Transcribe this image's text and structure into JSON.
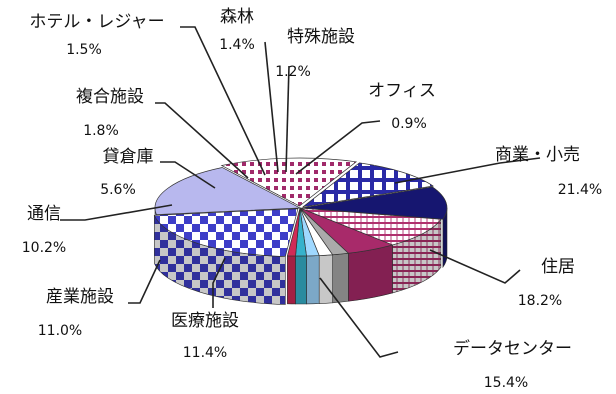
{
  "chart_data": {
    "type": "pie",
    "title": "",
    "style": "3d-exploded",
    "categories": [
      "商業・小売",
      "住居",
      "データセンター",
      "医療施設",
      "産業施設",
      "通信",
      "貸倉庫",
      "複合施設",
      "ホテル・レジャー",
      "森林",
      "特殊施設",
      "オフィス"
    ],
    "values": [
      21.4,
      18.2,
      15.4,
      11.4,
      11.0,
      10.2,
      5.6,
      1.8,
      1.5,
      1.4,
      1.2,
      0.9
    ],
    "value_labels": [
      "21.4%",
      "18.2%",
      "15.4%",
      "11.4%",
      "11.0%",
      "10.2%",
      "5.6%",
      "1.8%",
      "1.5%",
      "1.4%",
      "1.2%",
      "0.9%"
    ],
    "colors": [
      "#3e3ec8",
      "#b8b8ee",
      "#a02a6a",
      "#2a2aa6",
      "#161670",
      "#ffffff",
      "#a82a6a",
      "#aaaaaa",
      "#ffffff",
      "#9fd8ff",
      "#36b2cc",
      "#d02a56"
    ],
    "patterns": [
      "checker",
      "solid",
      "dots",
      "grid",
      "solid",
      "stripes",
      "solid",
      "solid",
      "solid",
      "solid",
      "solid",
      "solid"
    ]
  }
}
